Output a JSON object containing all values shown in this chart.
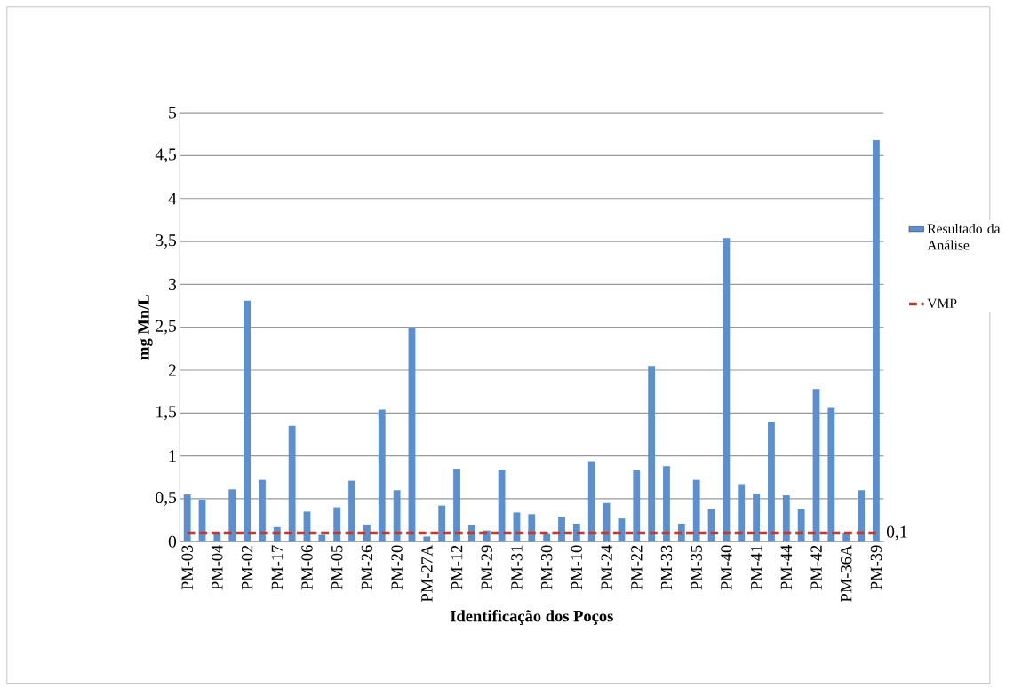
{
  "chart_data": {
    "type": "bar",
    "xlabel": "Identificação dos Poços",
    "ylabel": "mg Mn/L",
    "categories": [
      "PM-03",
      null,
      "PM-04",
      null,
      "PM-02",
      null,
      "PM-17",
      null,
      "PM-06",
      null,
      "PM-05",
      null,
      "PM-26",
      null,
      "PM-20",
      null,
      "PM-27A",
      null,
      "PM-12",
      null,
      "PM-29",
      null,
      "PM-31",
      null,
      "PM-30",
      null,
      "PM-10",
      null,
      "PM-24",
      null,
      "PM-22",
      null,
      "PM-33",
      null,
      "PM-35",
      null,
      "PM-40",
      null,
      "PM-41",
      null,
      "PM-44",
      null,
      "PM-42",
      null,
      "PM-36A",
      null,
      "PM-39"
    ],
    "series": [
      {
        "name": "Resultado da Análise",
        "color": "#5b8fd0",
        "values": [
          0.55,
          0.49,
          0.1,
          0.61,
          2.81,
          0.72,
          0.17,
          1.35,
          0.35,
          0.08,
          0.4,
          0.71,
          0.2,
          1.54,
          0.6,
          2.49,
          0.06,
          0.42,
          0.85,
          0.19,
          0.13,
          0.84,
          0.34,
          0.32,
          0.09,
          0.29,
          0.21,
          0.94,
          0.45,
          0.27,
          0.83,
          2.05,
          0.88,
          0.21,
          0.72,
          0.38,
          3.54,
          0.67,
          0.56,
          1.4,
          0.54,
          0.38,
          1.78,
          1.56,
          0.1,
          0.6,
          4.68
        ]
      },
      {
        "name": "VMP",
        "type": "line",
        "color": "#c0392b",
        "line_style": "dashed",
        "values": [
          0.1,
          0.1,
          0.1,
          0.1,
          0.1,
          0.1,
          0.1,
          0.1,
          0.1,
          0.1,
          0.1,
          0.1,
          0.1,
          0.1,
          0.1,
          0.1,
          0.1,
          0.1,
          0.1,
          0.1,
          0.1,
          0.1,
          0.1,
          0.1,
          0.1,
          0.1,
          0.1,
          0.1,
          0.1,
          0.1,
          0.1,
          0.1,
          0.1,
          0.1,
          0.1,
          0.1,
          0.1,
          0.1,
          0.1,
          0.1,
          0.1,
          0.1,
          0.1,
          0.1,
          0.1,
          0.1,
          0.1
        ],
        "value_labels": [
          null,
          null,
          null,
          null,
          null,
          null,
          null,
          null,
          null,
          null,
          null,
          null,
          null,
          null,
          null,
          null,
          null,
          null,
          null,
          null,
          null,
          null,
          null,
          null,
          null,
          null,
          null,
          null,
          null,
          null,
          null,
          null,
          null,
          null,
          null,
          null,
          null,
          null,
          null,
          null,
          null,
          null,
          null,
          null,
          null,
          null,
          "0,1"
        ]
      }
    ],
    "ylim": [
      0,
      5
    ],
    "yticks": [
      0,
      {
        "value": 0.5,
        "label": "0,5"
      },
      1,
      {
        "value": 1.5,
        "label": "1,5"
      },
      2,
      {
        "value": 2.5,
        "label": "2,5"
      },
      3,
      {
        "value": 3.5,
        "label": "3,5"
      },
      4,
      {
        "value": 4.5,
        "label": "4,5"
      },
      5
    ],
    "grid": "y",
    "legend": "right",
    "marker": "none"
  }
}
